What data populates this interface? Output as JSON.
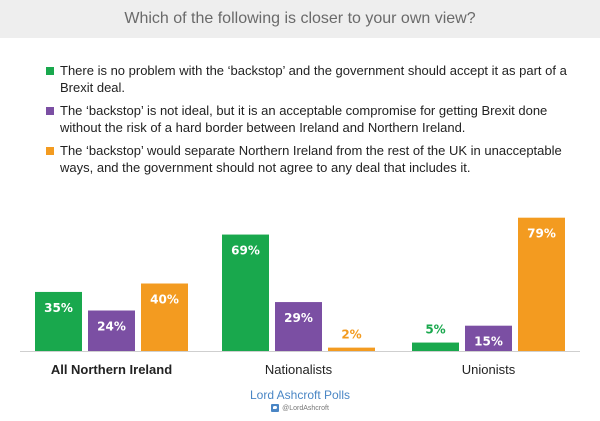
{
  "title": "Which of the following is closer to your own view?",
  "chart_data": {
    "type": "bar",
    "title": "Which of the following is closer to your own view?",
    "categories": [
      "All Northern Ireland",
      "Nationalists",
      "Unionists"
    ],
    "series": [
      {
        "name": "There is no problem with the ‘backstop’  and the government should accept it as part of a Brexit deal.",
        "color": "#19a84d",
        "values": [
          35,
          69,
          5
        ],
        "labels": [
          "35%",
          "69%",
          "5%"
        ]
      },
      {
        "name": "The ‘backstop’  is not ideal, but it is an acceptable compromise for getting Brexit done without the risk of a hard border between Ireland and Northern Ireland.",
        "color": "#7b4fa3",
        "values": [
          24,
          29,
          15
        ],
        "labels": [
          "24%",
          "29%",
          "15%"
        ]
      },
      {
        "name": "The ‘backstop’  would separate Northern Ireland from the rest of the UK in unacceptable ways, and the government should not agree to any deal that includes it.",
        "color": "#f39b20",
        "values": [
          40,
          2,
          79
        ],
        "labels": [
          "40%",
          "2%",
          "79%"
        ]
      }
    ],
    "ylim": [
      0,
      80
    ],
    "xlabel": "",
    "ylabel": "",
    "grid": false,
    "legend": "top"
  },
  "footer": {
    "source": "Lord Ashcroft Polls",
    "twitter": "@LordAshcroft",
    "twitter_icon": "twitter-icon"
  }
}
